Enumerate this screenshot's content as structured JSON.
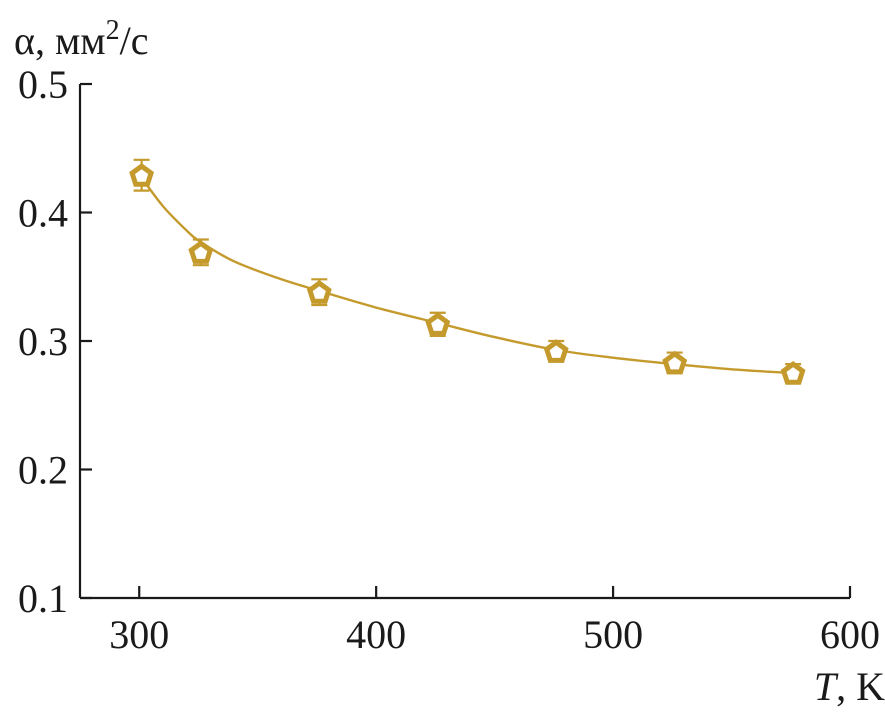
{
  "chart_data": {
    "type": "scatter",
    "title": "",
    "ylabel_prefix": "α, мм",
    "ylabel_sup": "2",
    "ylabel_suffix": "/с",
    "xlabel_var": "T",
    "xlabel_unit": ", K",
    "xlim": [
      275,
      600
    ],
    "ylim": [
      0.1,
      0.5
    ],
    "xticks": [
      300,
      400,
      500,
      600
    ],
    "xtick_labels": [
      "300",
      "400",
      "500",
      "600"
    ],
    "yticks": [
      0.1,
      0.2,
      0.3,
      0.4,
      0.5
    ],
    "ytick_labels": [
      "0.1",
      "0.2",
      "0.3",
      "0.4",
      "0.5"
    ],
    "grid": false,
    "marker": "pentagon",
    "color": "#c49a2c",
    "series": [
      {
        "x": [
          301,
          326,
          376,
          426,
          476,
          526,
          576
        ],
        "y": [
          0.429,
          0.369,
          0.338,
          0.313,
          0.292,
          0.283,
          0.275
        ],
        "error": [
          0.012,
          0.01,
          0.01,
          0.009,
          0.008,
          0.008,
          0.007
        ]
      }
    ],
    "fit_curve": {
      "x": [
        301,
        310,
        320,
        326,
        340,
        360,
        376,
        400,
        426,
        450,
        476,
        500,
        526,
        550,
        576
      ],
      "y": [
        0.427,
        0.405,
        0.386,
        0.377,
        0.362,
        0.348,
        0.339,
        0.326,
        0.314,
        0.303,
        0.293,
        0.287,
        0.282,
        0.278,
        0.275
      ]
    }
  }
}
